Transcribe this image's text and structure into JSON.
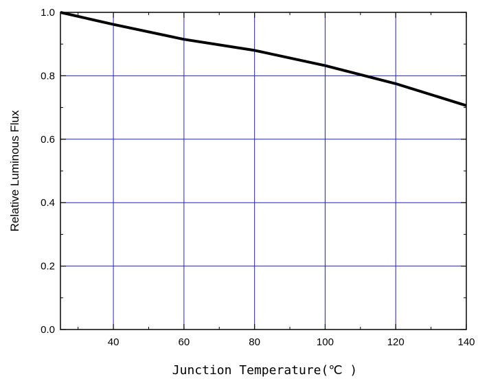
{
  "chart_data": {
    "type": "line",
    "title": "",
    "xlabel": "Junction Temperature(℃ )",
    "ylabel": "Relative Luminous Flux",
    "xlim": [
      25,
      140
    ],
    "ylim": [
      0.0,
      1.0
    ],
    "x_ticks": [
      40,
      60,
      80,
      100,
      120,
      140
    ],
    "x_tick_labels": [
      "40",
      "60",
      "80",
      "100",
      "120",
      "140"
    ],
    "y_ticks": [
      0.0,
      0.2,
      0.4,
      0.6,
      0.8,
      1.0
    ],
    "y_tick_labels": [
      "0.0",
      "0.2",
      "0.4",
      "0.6",
      "0.8",
      "1.0"
    ],
    "grid": true,
    "grid_color": "#1f1fd6",
    "line_color": "#000000",
    "series": [
      {
        "x": [
          25,
          40,
          60,
          80,
          100,
          120,
          140
        ],
        "values": [
          1.0,
          0.962,
          0.915,
          0.88,
          0.832,
          0.775,
          0.706
        ]
      }
    ]
  }
}
